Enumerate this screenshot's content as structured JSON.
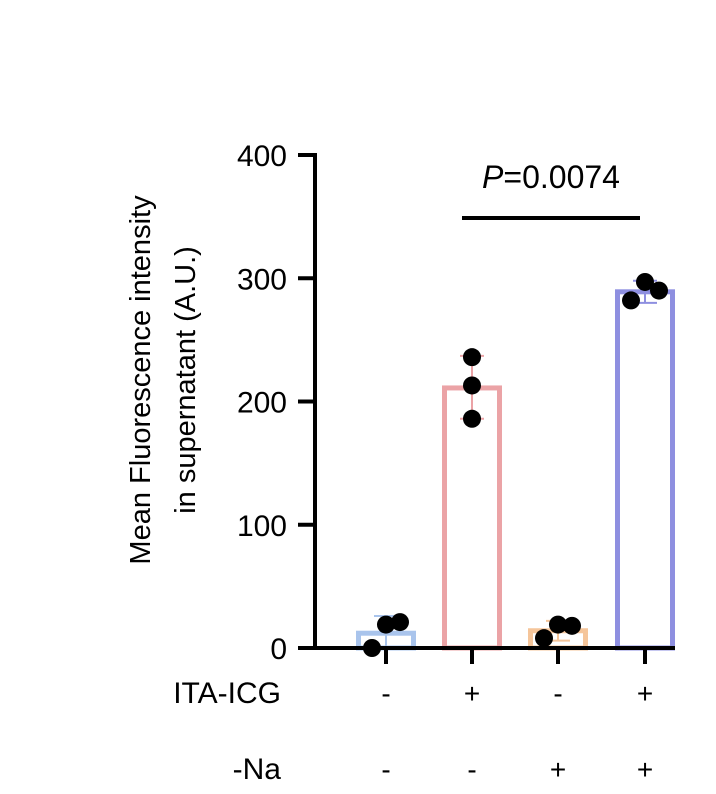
{
  "chart_data": {
    "type": "bar",
    "ylabel_line1": "Mean Fluorescence intensity",
    "ylabel_line2": "in supernatant (A.U.)",
    "ylim": [
      0,
      400
    ],
    "yticks": [
      0,
      100,
      200,
      300,
      400
    ],
    "ytick_labels": [
      "0",
      "100",
      "200",
      "300",
      "400"
    ],
    "categories": [
      "ITA-ICG - / -Na -",
      "ITA-ICG + / -Na -",
      "ITA-ICG - / -Na +",
      "ITA-ICG + / -Na +"
    ],
    "values": [
      12,
      211,
      14,
      289
    ],
    "error": [
      {
        "low": 0,
        "high": 26
      },
      {
        "low": 186,
        "high": 237
      },
      {
        "low": 6,
        "high": 22
      },
      {
        "low": 280,
        "high": 298
      }
    ],
    "points": [
      [
        0,
        19,
        21
      ],
      [
        186,
        213,
        236
      ],
      [
        8,
        19,
        18
      ],
      [
        282,
        297,
        290
      ]
    ],
    "colors": [
      "#a9c4ec",
      "#eba3a6",
      "#f5c59a",
      "#8e8fe0"
    ],
    "conditions": {
      "row1_label": "ITA-ICG",
      "row1": [
        "-",
        "+",
        "-",
        "+"
      ],
      "row2_label": "-Na",
      "row2": [
        "-",
        "-",
        "+",
        "+"
      ]
    },
    "significance": {
      "from_index": 1,
      "to_index": 3,
      "prefix": "P",
      "value_text": "=0.0074"
    },
    "grid": false,
    "legend": "none"
  }
}
